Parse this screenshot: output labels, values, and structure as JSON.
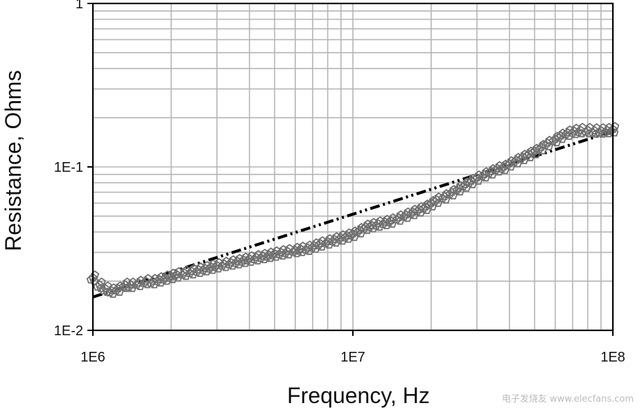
{
  "chart_data": {
    "type": "scatter",
    "xlabel": "Frequency, Hz",
    "ylabel": "Resistance, Ohms",
    "x_scale": "log",
    "y_scale": "log",
    "xlim": [
      1000000,
      100000000
    ],
    "ylim": [
      0.01,
      1
    ],
    "grid": true,
    "x_ticks": [
      {
        "value": 1000000,
        "label": "1E6"
      },
      {
        "value": 10000000,
        "label": "1E7"
      },
      {
        "value": 100000000,
        "label": "1E8"
      }
    ],
    "y_ticks": [
      {
        "value": 0.01,
        "label": "1E-2"
      },
      {
        "value": 0.1,
        "label": "1E-1"
      },
      {
        "value": 1,
        "label": "1"
      }
    ],
    "series": [
      {
        "kind": "measured",
        "marker": "pentagon-open",
        "color": "#707070",
        "x": [
          1000000,
          1060000,
          1120000,
          1180000,
          1250000,
          1330000,
          1400000,
          1500000,
          1600000,
          1700000,
          1800000,
          1900000,
          2000000,
          2100000,
          2250000,
          2400000,
          2550000,
          2700000,
          2850000,
          3000000,
          3200000,
          3400000,
          3600000,
          3800000,
          4000000,
          4250000,
          4500000,
          4750000,
          5000000,
          5300000,
          5600000,
          6000000,
          6300000,
          6700000,
          7100000,
          7500000,
          8000000,
          8500000,
          9000000,
          9500000,
          10000000,
          10600000,
          11200000,
          11800000,
          12500000,
          13300000,
          14000000,
          15000000,
          16000000,
          17000000,
          18000000,
          19000000,
          20000000,
          21000000,
          22500000,
          24000000,
          25500000,
          27000000,
          28500000,
          30000000,
          32000000,
          34000000,
          36000000,
          38000000,
          40000000,
          42500000,
          45000000,
          47500000,
          50000000,
          53000000,
          56000000,
          60000000,
          63000000,
          67000000,
          71000000,
          75000000,
          80000000,
          85000000,
          90000000,
          95000000,
          100000000
        ],
        "y": [
          0.021,
          0.019,
          0.018,
          0.0175,
          0.018,
          0.019,
          0.019,
          0.0195,
          0.02,
          0.02,
          0.0205,
          0.021,
          0.0215,
          0.022,
          0.0225,
          0.023,
          0.0235,
          0.024,
          0.0245,
          0.025,
          0.0255,
          0.026,
          0.0265,
          0.027,
          0.0275,
          0.028,
          0.0285,
          0.029,
          0.0295,
          0.03,
          0.0305,
          0.031,
          0.0315,
          0.032,
          0.033,
          0.034,
          0.035,
          0.036,
          0.037,
          0.038,
          0.039,
          0.041,
          0.043,
          0.044,
          0.045,
          0.046,
          0.047,
          0.049,
          0.051,
          0.053,
          0.055,
          0.057,
          0.06,
          0.063,
          0.066,
          0.07,
          0.074,
          0.078,
          0.082,
          0.086,
          0.09,
          0.094,
          0.098,
          0.1,
          0.105,
          0.11,
          0.115,
          0.12,
          0.125,
          0.132,
          0.14,
          0.148,
          0.155,
          0.162,
          0.166,
          0.168,
          0.168,
          0.167,
          0.167,
          0.168,
          0.17
        ]
      },
      {
        "kind": "fit",
        "line_style": "dash-dot-dot",
        "color": "#000000",
        "x": [
          1000000,
          100000000
        ],
        "y": [
          0.016,
          0.165
        ]
      }
    ]
  },
  "watermark": "电子发烧友 www.elecfans.com"
}
